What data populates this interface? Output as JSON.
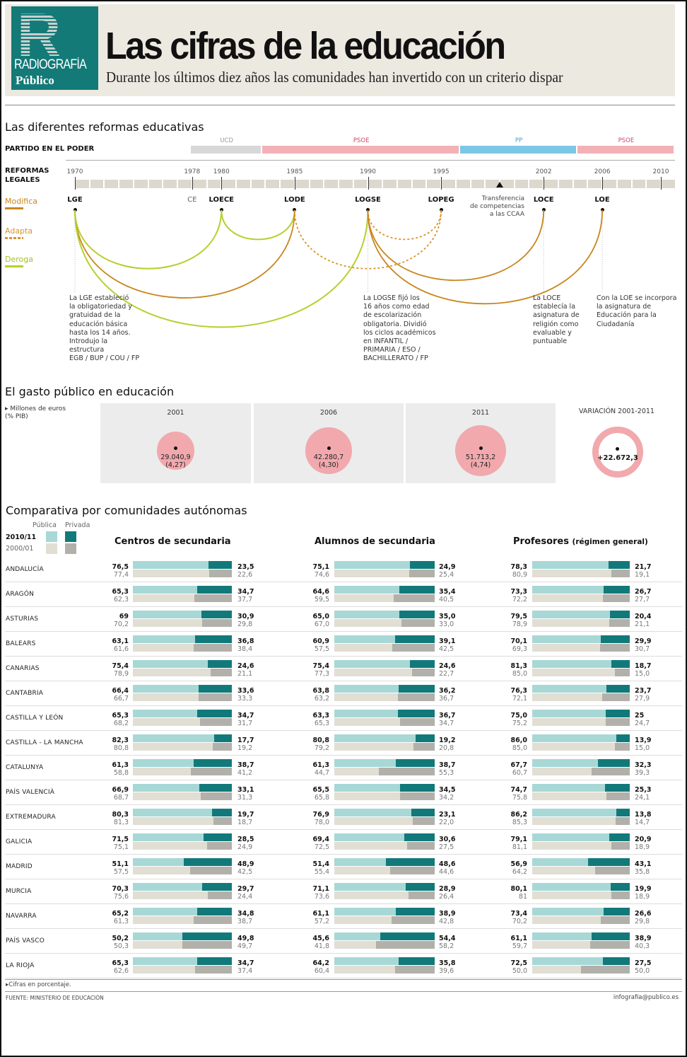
{
  "header": {
    "logo_letter": "R",
    "logo_section": "RADIOGRAFÍA",
    "logo_brand": "Público",
    "title": "Las cifras de la educación",
    "subtitle": "Durante los últimos diez años las comunidades han invertido con un criterio dispar"
  },
  "reformas": {
    "title": "Las diferentes reformas educativas",
    "partido_label": "PARTIDO EN EL PODER",
    "reformas_label_1": "REFORMAS",
    "reformas_label_2": "LEGALES",
    "parties": [
      {
        "name": "UCD",
        "start": 1977,
        "end": 1982.8,
        "color": "#d8d8d8",
        "label_color": "#999999"
      },
      {
        "name": "PSOE",
        "start": 1982.8,
        "end": 1996.3,
        "color": "#f2b1b6",
        "label_color": "#d0496a"
      },
      {
        "name": "PP",
        "start": 1996.3,
        "end": 2004.3,
        "color": "#7dc7e6",
        "label_color": "#3aa6d6"
      },
      {
        "name": "PSOE",
        "start": 2004.3,
        "end": 2011,
        "color": "#f2b1b6",
        "label_color": "#d0496a"
      }
    ],
    "years": [
      "1970",
      "1978",
      "1980",
      "1985",
      "1990",
      "1995",
      "2002",
      "2006",
      "2010"
    ],
    "transfer_marker_year": 1999,
    "transfer_label": "Transferencia\nde competencias\na las CCAA",
    "legend": [
      {
        "label": "Modifica",
        "color": "#c9861c",
        "style": "solid"
      },
      {
        "label": "Adapta",
        "color": "#d6952c",
        "style": "dashed"
      },
      {
        "label": "Deroga",
        "color": "#b7cf2d",
        "style": "solid"
      }
    ],
    "laws": [
      {
        "name": "LGE",
        "year": 1970,
        "bold": true
      },
      {
        "name": "CE",
        "year": 1978,
        "bold": false
      },
      {
        "name": "LOECE",
        "year": 1980,
        "bold": true
      },
      {
        "name": "LODE",
        "year": 1985,
        "bold": true
      },
      {
        "name": "LOGSE",
        "year": 1990,
        "bold": true
      },
      {
        "name": "LOPEG",
        "year": 1995,
        "bold": true
      },
      {
        "name": "LOCE",
        "year": 2002,
        "bold": true
      },
      {
        "name": "LOE",
        "year": 2006,
        "bold": true
      }
    ],
    "arcs": [
      {
        "from": "LGE",
        "to": "LOECE",
        "type": "Deroga"
      },
      {
        "from": "LOECE",
        "to": "LODE",
        "type": "Deroga"
      },
      {
        "from": "LGE",
        "to": "LODE",
        "type": "Modifica"
      },
      {
        "from": "LGE",
        "to": "LOGSE",
        "type": "Deroga"
      },
      {
        "from": "LODE",
        "to": "LOPEG",
        "type": "Adapta"
      },
      {
        "from": "LOGSE",
        "to": "LOPEG",
        "type": "Adapta"
      },
      {
        "from": "LOGSE",
        "to": "LOCE",
        "type": "Modifica"
      },
      {
        "from": "LOGSE",
        "to": "LOE",
        "type": "Modifica"
      }
    ],
    "notes": [
      {
        "law": "LGE",
        "text": "La LGE estableció\nla obligatoriedad y\ngratuidad de la\neducación básica\nhasta los 14 años.\nIntrodujo la\nestructura\nEGB / BUP / COU / FP"
      },
      {
        "law": "LOGSE",
        "text": "La LOGSE fijó los\n16 años como edad\nde escolarización\nobligatoria. Dividió\nlos ciclos académicos\nen INFANTIL /\nPRIMARIA / ESO /\nBACHILLERATO / FP"
      },
      {
        "law": "LOCE",
        "text": "La LOCE\nestablecía la\nasignatura de\nreligión como\nevaluable y\npuntuable"
      },
      {
        "law": "LOE",
        "text": "Con la LOE se incorpora\nla asignatura de\nEducación para la\nCiudadanía"
      }
    ]
  },
  "gasto": {
    "title": "El gasto público en educación",
    "unit_label": "Millones de euros\n(% PIB)",
    "panels": [
      {
        "year": "2001",
        "value": "29.040,9",
        "pib": "(4,27)",
        "amount": 29040.9
      },
      {
        "year": "2006",
        "value": "42.280,7",
        "pib": "(4,30)",
        "amount": 42280.7
      },
      {
        "year": "2011",
        "value": "51.713,2",
        "pib": "(4,74)",
        "amount": 51713.2
      }
    ],
    "variation_label": "VARIACIÓN 2001-2011",
    "variation_value": "+22.672,3"
  },
  "comparativa": {
    "title": "Comparativa por comunidades autónomas",
    "legend": {
      "publica": "Pública",
      "privada": "Privada",
      "year_new": "2010/11",
      "year_old": "2000/01",
      "colors": {
        "pub_new": "#a7d8d6",
        "priv_new": "#12797a",
        "pub_old": "#e1ded4",
        "priv_old": "#b2b0aa"
      }
    },
    "columns": [
      {
        "title": "Centros de secundaria",
        "suffix": ""
      },
      {
        "title": "Alumnos de secundaria",
        "suffix": ""
      },
      {
        "title": "Profesores",
        "suffix": "(régimen general)"
      }
    ],
    "rows": [
      {
        "region": "ANDALUCÍA",
        "cells": [
          [
            "76,5",
            "77,4",
            "23,5",
            "22,6"
          ],
          [
            "75,1",
            "74,6",
            "24,9",
            "25,4"
          ],
          [
            "78,3",
            "80,9",
            "21,7",
            "19,1"
          ]
        ]
      },
      {
        "region": "ARAGÓN",
        "cells": [
          [
            "65,3",
            "62,3",
            "34,7",
            "37,7"
          ],
          [
            "64,6",
            "59,5",
            "35,4",
            "40,5"
          ],
          [
            "73,3",
            "72,2",
            "26,7",
            "27,7"
          ]
        ]
      },
      {
        "region": "ASTURIAS",
        "cells": [
          [
            "69",
            "70,2",
            "30,9",
            "29,8"
          ],
          [
            "65,0",
            "67,0",
            "35,0",
            "33,0"
          ],
          [
            "79,5",
            "78,9",
            "20,4",
            "21,1"
          ]
        ]
      },
      {
        "region": "BALEARS",
        "cells": [
          [
            "63,1",
            "61,6",
            "36,8",
            "38,4"
          ],
          [
            "60,9",
            "57,5",
            "39,1",
            "42,5"
          ],
          [
            "70,1",
            "69,3",
            "29,9",
            "30,7"
          ]
        ]
      },
      {
        "region": "CANARIAS",
        "cells": [
          [
            "75,4",
            "78,9",
            "24,6",
            "21,1"
          ],
          [
            "75,4",
            "77,3",
            "24,6",
            "22,7"
          ],
          [
            "81,3",
            "85,0",
            "18,7",
            "15,0"
          ]
        ]
      },
      {
        "region": "CANTABRIA",
        "cells": [
          [
            "66,4",
            "66,7",
            "33,6",
            "33,3"
          ],
          [
            "63,8",
            "63,2",
            "36,2",
            "36,7"
          ],
          [
            "76,3",
            "72,1",
            "23,7",
            "27,9"
          ]
        ]
      },
      {
        "region": "CASTILLA Y LEÓN",
        "cells": [
          [
            "65,3",
            "68,2",
            "34,7",
            "31,7"
          ],
          [
            "63,3",
            "65,3",
            "36,7",
            "34,7"
          ],
          [
            "75,0",
            "75,2",
            "25",
            "24,7"
          ]
        ]
      },
      {
        "region": "CASTILLA - LA MANCHA",
        "cells": [
          [
            "82,3",
            "80,8",
            "17,7",
            "19,2"
          ],
          [
            "80,8",
            "79,2",
            "19,2",
            "20,8"
          ],
          [
            "86,0",
            "85,0",
            "13,9",
            "15,0"
          ]
        ]
      },
      {
        "region": "CATALUNYA",
        "cells": [
          [
            "61,3",
            "58,8",
            "38,7",
            "41,2"
          ],
          [
            "61,3",
            "44,7",
            "38,7",
            "55,3"
          ],
          [
            "67,7",
            "60,7",
            "32,3",
            "39,3"
          ]
        ]
      },
      {
        "region": "PAÍS VALENCIÀ",
        "cells": [
          [
            "66,9",
            "68,7",
            "33,1",
            "31,3"
          ],
          [
            "65,5",
            "65,8",
            "34,5",
            "34,2"
          ],
          [
            "74,7",
            "75,8",
            "25,3",
            "24,1"
          ]
        ]
      },
      {
        "region": "EXTREMADURA",
        "cells": [
          [
            "80,3",
            "81,3",
            "19,7",
            "18,7"
          ],
          [
            "76,9",
            "78,0",
            "23,1",
            "22,0"
          ],
          [
            "86,2",
            "85,3",
            "13,8",
            "14,7"
          ]
        ]
      },
      {
        "region": "GALICIA",
        "cells": [
          [
            "71,5",
            "75,1",
            "28,5",
            "24,9"
          ],
          [
            "69,4",
            "72,5",
            "30,6",
            "27,5"
          ],
          [
            "79,1",
            "81,1",
            "20,9",
            "18,9"
          ]
        ]
      },
      {
        "region": "MADRID",
        "cells": [
          [
            "51,1",
            "57,5",
            "48,9",
            "42,5"
          ],
          [
            "51,4",
            "55,4",
            "48,6",
            "44,6"
          ],
          [
            "56,9",
            "64,2",
            "43,1",
            "35,8"
          ]
        ]
      },
      {
        "region": "MURCIA",
        "cells": [
          [
            "70,3",
            "75,6",
            "29,7",
            "24,4"
          ],
          [
            "71,1",
            "73,6",
            "28,9",
            "26,4"
          ],
          [
            "80,1",
            "81",
            "19,9",
            "18,9"
          ]
        ]
      },
      {
        "region": "NAVARRA",
        "cells": [
          [
            "65,2",
            "61,3",
            "34,8",
            "38,7"
          ],
          [
            "61,1",
            "57,2",
            "38,9",
            "42,8"
          ],
          [
            "73,4",
            "70,2",
            "26,6",
            "29,8"
          ]
        ]
      },
      {
        "region": "PAÍS VASCO",
        "cells": [
          [
            "50,2",
            "50,3",
            "49,8",
            "49,7"
          ],
          [
            "45,6",
            "41,8",
            "54,4",
            "58,2"
          ],
          [
            "61,1",
            "59,7",
            "38,9",
            "40,3"
          ]
        ]
      },
      {
        "region": "LA RIOJA",
        "cells": [
          [
            "65,3",
            "62,6",
            "34,7",
            "37,4"
          ],
          [
            "64,2",
            "60,4",
            "35,8",
            "39,6"
          ],
          [
            "72,5",
            "50,0",
            "27,5",
            "50,0"
          ]
        ]
      }
    ]
  },
  "footer": {
    "note": "Cifras en porcentaje.",
    "source": "FUENTE:  MINISTERIO DE EDUCACIÓN",
    "credit": "infografia@publico.es"
  },
  "chart_data": [
    {
      "type": "timeline",
      "title": "Las diferentes reformas educativas",
      "x_range": [
        1970,
        2011
      ],
      "events": [
        [
          "LGE",
          1970
        ],
        [
          "CE",
          1978
        ],
        [
          "LOECE",
          1980
        ],
        [
          "LODE",
          1985
        ],
        [
          "LOGSE",
          1990
        ],
        [
          "LOPEG",
          1995
        ],
        [
          "Transferencia de competencias a las CCAA",
          1999
        ],
        [
          "LOCE",
          2002
        ],
        [
          "LOE",
          2006
        ]
      ]
    },
    {
      "type": "bubble",
      "title": "El gasto público en educación",
      "categories": [
        "2001",
        "2006",
        "2011"
      ],
      "values": [
        29040.9,
        42280.7,
        51713.2
      ],
      "pib_percent": [
        4.27,
        4.3,
        4.74
      ],
      "variation": 22672.3
    },
    {
      "type": "bar",
      "title": "Comparativa por comunidades autónomas",
      "stacked": true,
      "note": "Cifras en porcentaje"
    }
  ]
}
